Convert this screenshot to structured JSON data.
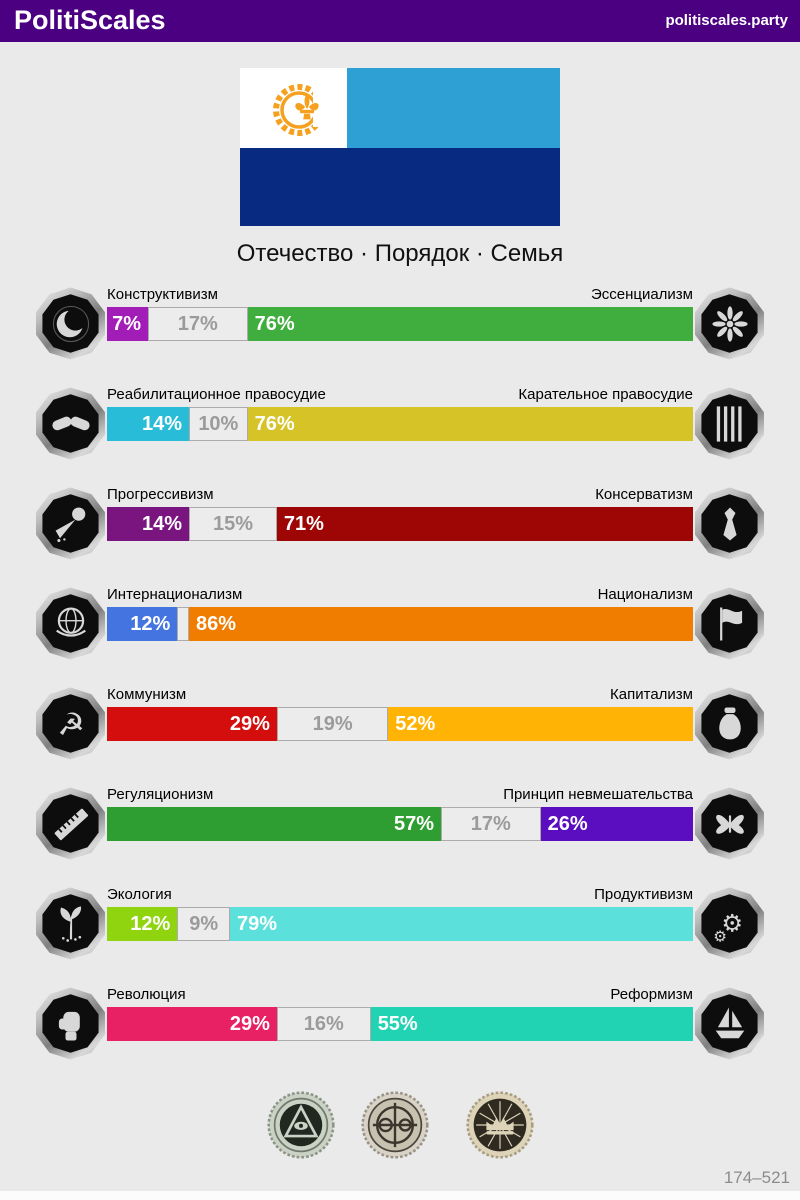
{
  "header": {
    "brand": "PolitiScales",
    "site": "politiscales.party",
    "bg_color": "#4B0082"
  },
  "flag": {
    "description": "result-flag",
    "colors": {
      "canton": "#FFFFFF",
      "top_stripe": "#2FA0D3",
      "bottom_stripe": "#082A81",
      "emblem": "#F5A01E"
    },
    "emblem_icon": "gear-crescent-fleur-de-lis"
  },
  "motto": "Отечество · Порядок · Семья",
  "neutral_style": {
    "bg": "#ECECEC",
    "border": "#ABABAB",
    "text_color": "#9B9B9B"
  },
  "axes": [
    {
      "left": {
        "label": "Конструктивизм",
        "pct": 7,
        "text": "7%",
        "color": "#A21CB8",
        "icon": "moon-gear-icon"
      },
      "neutral": {
        "pct": 17,
        "text": "17%"
      },
      "right": {
        "label": "Эссенциализм",
        "pct": 76,
        "text": "76%",
        "color": "#3FAE3E",
        "icon": "dandelion-icon"
      }
    },
    {
      "left": {
        "label": "Реабилитационное правосудие",
        "pct": 14,
        "text": "14%",
        "color": "#29BCD8",
        "icon": "handshake-icon"
      },
      "neutral": {
        "pct": 10,
        "text": "10%"
      },
      "right": {
        "label": "Карательное правосудие",
        "pct": 76,
        "text": "76%",
        "color": "#D6C327",
        "icon": "prison-bars-icon"
      }
    },
    {
      "left": {
        "label": "Прогрессивизм",
        "pct": 14,
        "text": "14%",
        "color": "#7A1580",
        "icon": "paint-splash-icon"
      },
      "neutral": {
        "pct": 15,
        "text": "15%"
      },
      "right": {
        "label": "Консерватизм",
        "pct": 71,
        "text": "71%",
        "color": "#9E0505",
        "icon": "necktie-icon"
      }
    },
    {
      "left": {
        "label": "Интернационализм",
        "pct": 12,
        "text": "12%",
        "color": "#4374E0",
        "icon": "globe-laurel-icon"
      },
      "neutral": {
        "pct": 2,
        "text": ""
      },
      "right": {
        "label": "Национализм",
        "pct": 86,
        "text": "86%",
        "color": "#F07C00",
        "icon": "flag-icon"
      }
    },
    {
      "left": {
        "label": "Коммунизм",
        "pct": 29,
        "text": "29%",
        "color": "#D40D0D",
        "icon": "hammer-sickle-icon"
      },
      "neutral": {
        "pct": 19,
        "text": "19%"
      },
      "right": {
        "label": "Капитализм",
        "pct": 52,
        "text": "52%",
        "color": "#FFB405",
        "icon": "money-bag-icon"
      }
    },
    {
      "left": {
        "label": "Регуляционизм",
        "pct": 57,
        "text": "57%",
        "color": "#2F9E32",
        "icon": "ruler-icon"
      },
      "neutral": {
        "pct": 17,
        "text": "17%"
      },
      "right": {
        "label": "Принцип невмешательства",
        "pct": 26,
        "text": "26%",
        "color": "#5A0EC0",
        "icon": "butterfly-icon"
      }
    },
    {
      "left": {
        "label": "Экология",
        "pct": 12,
        "text": "12%",
        "color": "#8FD40F",
        "icon": "sprout-icon"
      },
      "neutral": {
        "pct": 9,
        "text": "9%"
      },
      "right": {
        "label": "Продуктивизм",
        "pct": 79,
        "text": "79%",
        "color": "#5CE0DC",
        "icon": "gears-icon"
      }
    },
    {
      "left": {
        "label": "Революция",
        "pct": 29,
        "text": "29%",
        "color": "#E82064",
        "icon": "fist-icon"
      },
      "neutral": {
        "pct": 16,
        "text": "16%"
      },
      "right": {
        "label": "Реформизм",
        "pct": 55,
        "text": "55%",
        "color": "#21D3B2",
        "icon": "sailboat-icon"
      }
    }
  ],
  "bonus_badges": [
    {
      "icon": "pyramid-eye-coin",
      "ring_color": "#c9d2c4",
      "face_color": "#20281f"
    },
    {
      "icon": "globe-cross-coin",
      "ring_color": "#d8d3c6",
      "face_color": "#c7c1b0"
    },
    {
      "icon": "crown-rays-coin",
      "ring_color": "#ddd3b8",
      "face_color": "#2e2a20"
    }
  ],
  "footer": {
    "score": "174–521"
  }
}
